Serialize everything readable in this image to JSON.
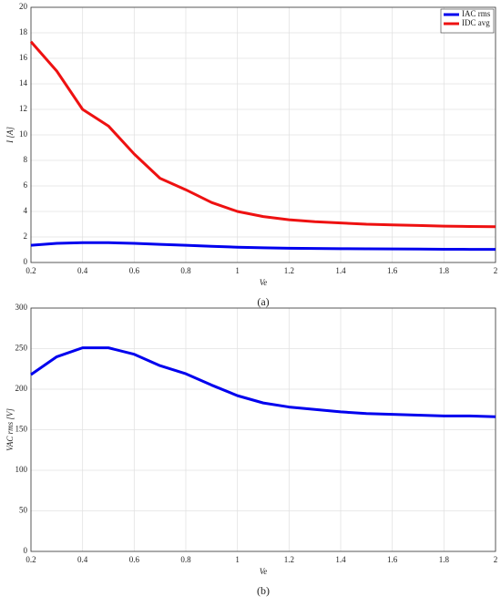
{
  "chart_data": [
    {
      "type": "line",
      "caption": "(a)",
      "x_label": "Ve",
      "y_label": "I  [A]",
      "x": [
        0.2,
        0.3,
        0.4,
        0.5,
        0.6,
        0.7,
        0.8,
        0.9,
        1.0,
        1.1,
        1.2,
        1.3,
        1.4,
        1.5,
        1.6,
        1.7,
        1.8,
        1.9,
        2.0
      ],
      "series": [
        {
          "name": "IAC rms",
          "color": "#0000ee",
          "values": [
            1.35,
            1.5,
            1.55,
            1.55,
            1.5,
            1.42,
            1.35,
            1.27,
            1.2,
            1.15,
            1.12,
            1.1,
            1.08,
            1.07,
            1.06,
            1.05,
            1.04,
            1.03,
            1.03
          ]
        },
        {
          "name": "IDC avg",
          "color": "#ee1111",
          "values": [
            17.3,
            15.0,
            12.0,
            10.7,
            8.5,
            6.6,
            5.7,
            4.7,
            4.0,
            3.6,
            3.35,
            3.2,
            3.1,
            3.0,
            2.95,
            2.9,
            2.85,
            2.82,
            2.8
          ]
        }
      ],
      "xlim": [
        0.2,
        2
      ],
      "xticks": [
        0.2,
        0.4,
        0.6,
        0.8,
        1,
        1.2,
        1.4,
        1.6,
        1.8,
        2
      ],
      "ylim": [
        0,
        20
      ],
      "yticks": [
        0,
        2,
        4,
        6,
        8,
        10,
        12,
        14,
        16,
        18,
        20
      ],
      "grid": true,
      "legend": "northeast"
    },
    {
      "type": "line",
      "caption": "(b)",
      "x_label": "Ve",
      "y_label": "VAC rms [V]",
      "x": [
        0.2,
        0.3,
        0.4,
        0.5,
        0.6,
        0.7,
        0.8,
        0.9,
        1.0,
        1.1,
        1.2,
        1.3,
        1.4,
        1.5,
        1.6,
        1.7,
        1.8,
        1.9,
        2.0
      ],
      "series": [
        {
          "color": "#0000ee",
          "values": [
            218,
            240,
            251,
            251,
            243,
            229,
            219,
            205,
            192,
            183,
            178,
            175,
            172,
            170,
            169,
            168,
            167,
            167,
            166
          ]
        }
      ],
      "xlim": [
        0.2,
        2
      ],
      "xticks": [
        0.2,
        0.4,
        0.6,
        0.8,
        1,
        1.2,
        1.4,
        1.6,
        1.8,
        2
      ],
      "ylim": [
        0,
        300
      ],
      "yticks": [
        0,
        50,
        100,
        150,
        200,
        250,
        300
      ],
      "grid": true
    }
  ]
}
